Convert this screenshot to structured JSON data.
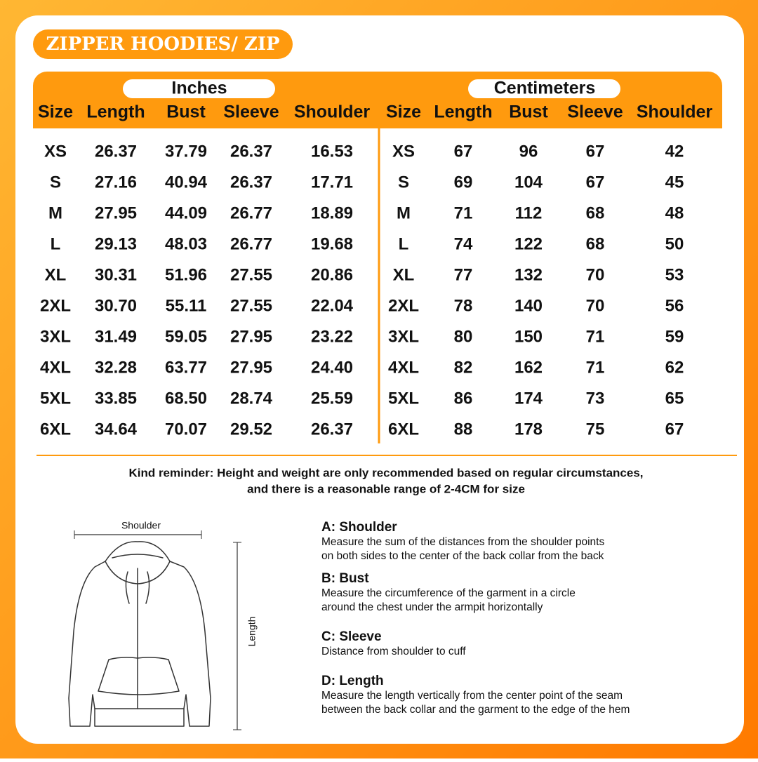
{
  "header": {
    "title": "ZIPPER HOODIES/ ZIP"
  },
  "table": {
    "inches": {
      "group": "Inches",
      "columns": [
        "Size",
        "Length",
        "Bust",
        "Sleeve",
        "Shoulder"
      ],
      "rows": [
        [
          "XS",
          "26.37",
          "37.79",
          "26.37",
          "16.53"
        ],
        [
          "S",
          "27.16",
          "40.94",
          "26.37",
          "17.71"
        ],
        [
          "M",
          "27.95",
          "44.09",
          "26.77",
          "18.89"
        ],
        [
          "L",
          "29.13",
          "48.03",
          "26.77",
          "19.68"
        ],
        [
          "XL",
          "30.31",
          "51.96",
          "27.55",
          "20.86"
        ],
        [
          "2XL",
          "30.70",
          "55.11",
          "27.55",
          "22.04"
        ],
        [
          "3XL",
          "31.49",
          "59.05",
          "27.95",
          "23.22"
        ],
        [
          "4XL",
          "32.28",
          "63.77",
          "27.95",
          "24.40"
        ],
        [
          "5XL",
          "33.85",
          "68.50",
          "28.74",
          "25.59"
        ],
        [
          "6XL",
          "34.64",
          "70.07",
          "29.52",
          "26.37"
        ]
      ]
    },
    "centimeters": {
      "group": "Centimeters",
      "columns": [
        "Size",
        "Length",
        "Bust",
        "Sleeve",
        "Shoulder"
      ],
      "rows": [
        [
          "XS",
          "67",
          "96",
          "67",
          "42"
        ],
        [
          "S",
          "69",
          "104",
          "67",
          "45"
        ],
        [
          "M",
          "71",
          "112",
          "68",
          "48"
        ],
        [
          "L",
          "74",
          "122",
          "68",
          "50"
        ],
        [
          "XL",
          "77",
          "132",
          "70",
          "53"
        ],
        [
          "2XL",
          "78",
          "140",
          "70",
          "56"
        ],
        [
          "3XL",
          "80",
          "150",
          "71",
          "59"
        ],
        [
          "4XL",
          "82",
          "162",
          "71",
          "62"
        ],
        [
          "5XL",
          "86",
          "174",
          "73",
          "65"
        ],
        [
          "6XL",
          "88",
          "178",
          "75",
          "67"
        ]
      ]
    }
  },
  "reminder": [
    "Kind reminder: Height and weight are only recommended based on regular circumstances,",
    "and there is a reasonable range of 2-4CM for size"
  ],
  "diagram": {
    "shoulder_label": "Shoulder",
    "length_label": "Length"
  },
  "measurements": [
    {
      "title": "A: Shoulder",
      "lines": [
        "Measure the sum of the distances from the shoulder points",
        "on both sides to the center of the back collar from the back"
      ]
    },
    {
      "title": "B: Bust",
      "lines": [
        "Measure the circumference of the garment in a circle",
        "around the chest under the armpit horizontally"
      ]
    },
    {
      "title": "C: Sleeve",
      "lines": [
        "Distance from shoulder to cuff"
      ]
    },
    {
      "title": "D: Length",
      "lines": [
        "Measure the length vertically from the center point of the seam",
        "between the back collar and the garment to the edge of the hem"
      ]
    }
  ]
}
